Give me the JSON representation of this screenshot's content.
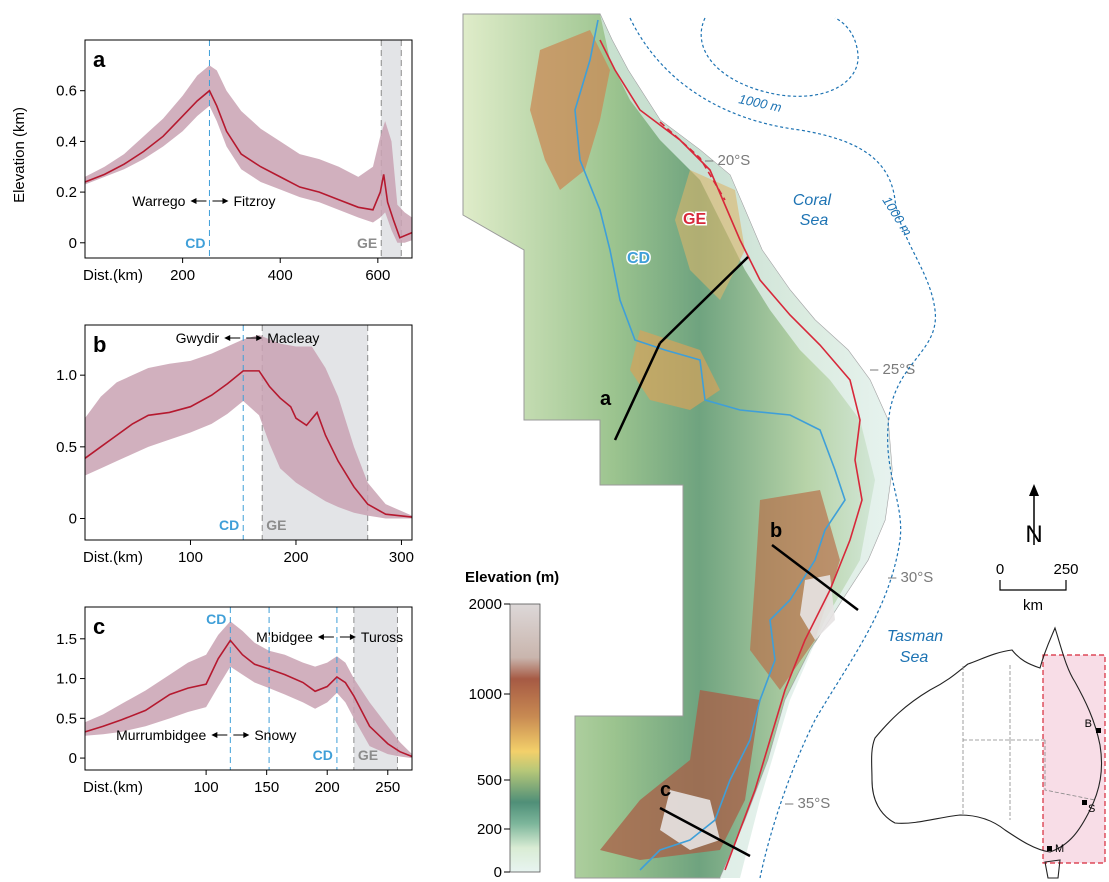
{
  "colors": {
    "profile_line": "#b5192f",
    "profile_band": "#c9a2b3",
    "cd_blue": "#3f9fd8",
    "ge_grey": "#8c8c8c",
    "ge_band": "#e3e4e7",
    "ge_red": "#d7283a",
    "sea_label": "#1d73b3",
    "contour": "#1d73b3",
    "lat_grey": "#7a7a7a",
    "inset_pink": "#f8dde7"
  },
  "chart_data": [
    {
      "id": "a",
      "type": "line",
      "panel_label": "a",
      "xlabel": "Dist.(km)",
      "ylabel": "Elevation (km)",
      "xlim": [
        0,
        670
      ],
      "ylim": [
        -0.06,
        0.8
      ],
      "xticks": [
        "200",
        "400",
        "600"
      ],
      "xtick_values": [
        200,
        400,
        600
      ],
      "yticks": [
        "0",
        "0.2",
        "0.4",
        "0.6"
      ],
      "ytick_values": [
        0,
        0.2,
        0.4,
        0.6
      ],
      "cd_lines": [
        255
      ],
      "ge_range": [
        607,
        648
      ],
      "cd_label": "CD",
      "ge_label": "GE",
      "drainage": {
        "left": "Warrego",
        "right": "Fitzroy",
        "at": 255
      },
      "series": [
        {
          "values": [
            [
              0,
              0.24
            ],
            [
              40,
              0.27
            ],
            [
              80,
              0.31
            ],
            [
              120,
              0.36
            ],
            [
              160,
              0.42
            ],
            [
              200,
              0.5
            ],
            [
              230,
              0.56
            ],
            [
              255,
              0.6
            ],
            [
              270,
              0.54
            ],
            [
              290,
              0.44
            ],
            [
              320,
              0.35
            ],
            [
              360,
              0.3
            ],
            [
              400,
              0.26
            ],
            [
              440,
              0.22
            ],
            [
              480,
              0.2
            ],
            [
              520,
              0.17
            ],
            [
              560,
              0.14
            ],
            [
              590,
              0.13
            ],
            [
              605,
              0.2
            ],
            [
              612,
              0.27
            ],
            [
              620,
              0.16
            ],
            [
              632,
              0.09
            ],
            [
              645,
              0.02
            ],
            [
              670,
              0.04
            ]
          ]
        },
        {
          "name": "",
          "band": true,
          "upper": [
            [
              0,
              0.26
            ],
            [
              40,
              0.3
            ],
            [
              80,
              0.35
            ],
            [
              120,
              0.42
            ],
            [
              160,
              0.49
            ],
            [
              200,
              0.58
            ],
            [
              230,
              0.66
            ],
            [
              255,
              0.7
            ],
            [
              270,
              0.68
            ],
            [
              290,
              0.6
            ],
            [
              320,
              0.52
            ],
            [
              360,
              0.45
            ],
            [
              400,
              0.4
            ],
            [
              440,
              0.35
            ],
            [
              480,
              0.33
            ],
            [
              520,
              0.3
            ],
            [
              560,
              0.26
            ],
            [
              590,
              0.3
            ],
            [
              605,
              0.42
            ],
            [
              615,
              0.48
            ],
            [
              628,
              0.4
            ],
            [
              640,
              0.15
            ],
            [
              655,
              0.12
            ],
            [
              670,
              0.1
            ]
          ],
          "lower": [
            [
              0,
              0.23
            ],
            [
              40,
              0.26
            ],
            [
              80,
              0.29
            ],
            [
              120,
              0.33
            ],
            [
              160,
              0.38
            ],
            [
              200,
              0.44
            ],
            [
              230,
              0.5
            ],
            [
              255,
              0.54
            ],
            [
              270,
              0.48
            ],
            [
              290,
              0.38
            ],
            [
              320,
              0.29
            ],
            [
              360,
              0.24
            ],
            [
              400,
              0.21
            ],
            [
              440,
              0.18
            ],
            [
              480,
              0.16
            ],
            [
              520,
              0.13
            ],
            [
              560,
              0.1
            ],
            [
              590,
              0.08
            ],
            [
              605,
              0.1
            ],
            [
              615,
              0.12
            ],
            [
              628,
              0.05
            ],
            [
              640,
              0.0
            ],
            [
              655,
              0.0
            ],
            [
              670,
              0.01
            ]
          ]
        }
      ]
    },
    {
      "id": "b",
      "type": "line",
      "panel_label": "b",
      "xlabel": "Dist.(km)",
      "ylabel": "",
      "xlim": [
        0,
        310
      ],
      "ylim": [
        -0.15,
        1.35
      ],
      "xticks": [
        "100",
        "200",
        "300"
      ],
      "xtick_values": [
        100,
        200,
        300
      ],
      "yticks": [
        "0",
        "0.5",
        "1.0"
      ],
      "ytick_values": [
        0,
        0.5,
        1.0
      ],
      "cd_lines": [
        150
      ],
      "ge_range": [
        168,
        268
      ],
      "cd_label": "CD",
      "ge_label": "GE",
      "drainage": {
        "left": "Gwydir",
        "right": "Macleay",
        "at": 150
      },
      "series": [
        {
          "values": [
            [
              0,
              0.42
            ],
            [
              15,
              0.5
            ],
            [
              30,
              0.58
            ],
            [
              45,
              0.66
            ],
            [
              60,
              0.72
            ],
            [
              80,
              0.74
            ],
            [
              100,
              0.78
            ],
            [
              120,
              0.86
            ],
            [
              135,
              0.94
            ],
            [
              150,
              1.03
            ],
            [
              165,
              1.03
            ],
            [
              175,
              0.92
            ],
            [
              185,
              0.84
            ],
            [
              195,
              0.78
            ],
            [
              200,
              0.7
            ],
            [
              210,
              0.65
            ],
            [
              220,
              0.74
            ],
            [
              228,
              0.58
            ],
            [
              240,
              0.4
            ],
            [
              255,
              0.22
            ],
            [
              268,
              0.1
            ],
            [
              285,
              0.03
            ],
            [
              310,
              0.01
            ]
          ]
        },
        {
          "band": true,
          "upper": [
            [
              0,
              0.7
            ],
            [
              15,
              0.85
            ],
            [
              30,
              0.95
            ],
            [
              45,
              1.0
            ],
            [
              60,
              1.05
            ],
            [
              80,
              1.08
            ],
            [
              100,
              1.1
            ],
            [
              120,
              1.15
            ],
            [
              135,
              1.2
            ],
            [
              150,
              1.25
            ],
            [
              165,
              1.28
            ],
            [
              175,
              1.25
            ],
            [
              185,
              1.22
            ],
            [
              200,
              1.2
            ],
            [
              215,
              1.2
            ],
            [
              228,
              1.05
            ],
            [
              240,
              0.85
            ],
            [
              255,
              0.5
            ],
            [
              268,
              0.25
            ],
            [
              285,
              0.1
            ],
            [
              310,
              0.02
            ]
          ],
          "lower": [
            [
              0,
              0.3
            ],
            [
              15,
              0.35
            ],
            [
              30,
              0.4
            ],
            [
              45,
              0.45
            ],
            [
              60,
              0.5
            ],
            [
              80,
              0.55
            ],
            [
              100,
              0.6
            ],
            [
              120,
              0.66
            ],
            [
              135,
              0.73
            ],
            [
              150,
              0.82
            ],
            [
              165,
              0.72
            ],
            [
              175,
              0.52
            ],
            [
              185,
              0.35
            ],
            [
              200,
              0.25
            ],
            [
              215,
              0.18
            ],
            [
              228,
              0.12
            ],
            [
              240,
              0.08
            ],
            [
              255,
              0.04
            ],
            [
              268,
              0.02
            ],
            [
              285,
              0.0
            ],
            [
              310,
              0.0
            ]
          ]
        }
      ]
    },
    {
      "id": "c",
      "type": "line",
      "panel_label": "c",
      "xlabel": "Dist.(km)",
      "ylabel": "",
      "xlim": [
        0,
        270
      ],
      "ylim": [
        -0.15,
        1.9
      ],
      "xticks": [
        "100",
        "150",
        "200",
        "250"
      ],
      "xtick_values": [
        100,
        150,
        200,
        250
      ],
      "yticks": [
        "0",
        "0.5",
        "1.0",
        "1.5"
      ],
      "ytick_values": [
        0,
        0.5,
        1.0,
        1.5
      ],
      "cd_lines": [
        120,
        152,
        208
      ],
      "ge_range": [
        222,
        258
      ],
      "cd_label": "CD",
      "ge_label": "GE",
      "drainage": {
        "left": "Murrumbidgee",
        "right": "Snowy",
        "at": 120
      },
      "drainage2": {
        "left": "M’bidgee",
        "right": "Tuross",
        "at": 208
      },
      "series": [
        {
          "values": [
            [
              0,
              0.33
            ],
            [
              15,
              0.4
            ],
            [
              30,
              0.48
            ],
            [
              50,
              0.6
            ],
            [
              70,
              0.8
            ],
            [
              85,
              0.88
            ],
            [
              100,
              0.93
            ],
            [
              110,
              1.25
            ],
            [
              120,
              1.48
            ],
            [
              130,
              1.3
            ],
            [
              140,
              1.18
            ],
            [
              152,
              1.12
            ],
            [
              165,
              1.05
            ],
            [
              180,
              0.95
            ],
            [
              190,
              0.84
            ],
            [
              200,
              0.9
            ],
            [
              208,
              1.02
            ],
            [
              215,
              0.95
            ],
            [
              222,
              0.78
            ],
            [
              235,
              0.4
            ],
            [
              250,
              0.18
            ],
            [
              260,
              0.08
            ],
            [
              270,
              0.02
            ]
          ]
        },
        {
          "band": true,
          "upper": [
            [
              0,
              0.45
            ],
            [
              15,
              0.55
            ],
            [
              30,
              0.68
            ],
            [
              50,
              0.85
            ],
            [
              70,
              1.05
            ],
            [
              85,
              1.2
            ],
            [
              100,
              1.3
            ],
            [
              110,
              1.55
            ],
            [
              120,
              1.72
            ],
            [
              130,
              1.6
            ],
            [
              140,
              1.45
            ],
            [
              152,
              1.35
            ],
            [
              165,
              1.3
            ],
            [
              180,
              1.2
            ],
            [
              190,
              1.15
            ],
            [
              200,
              1.2
            ],
            [
              208,
              1.28
            ],
            [
              215,
              1.2
            ],
            [
              222,
              1.0
            ],
            [
              235,
              0.7
            ],
            [
              250,
              0.4
            ],
            [
              260,
              0.2
            ],
            [
              270,
              0.05
            ]
          ],
          "lower": [
            [
              0,
              0.28
            ],
            [
              15,
              0.3
            ],
            [
              30,
              0.33
            ],
            [
              50,
              0.4
            ],
            [
              70,
              0.5
            ],
            [
              85,
              0.58
            ],
            [
              100,
              0.64
            ],
            [
              110,
              0.9
            ],
            [
              120,
              1.15
            ],
            [
              130,
              1.05
            ],
            [
              140,
              0.95
            ],
            [
              152,
              0.88
            ],
            [
              165,
              0.8
            ],
            [
              180,
              0.7
            ],
            [
              190,
              0.62
            ],
            [
              200,
              0.7
            ],
            [
              208,
              0.82
            ],
            [
              215,
              0.7
            ],
            [
              222,
              0.5
            ],
            [
              235,
              0.15
            ],
            [
              250,
              0.05
            ],
            [
              260,
              0.02
            ],
            [
              270,
              0.0
            ]
          ]
        }
      ]
    }
  ],
  "map": {
    "lat_labels": [
      "– 20°S",
      "– 25°S",
      "– 30°S",
      "– 35°S"
    ],
    "sea_labels": [
      "Coral",
      "Sea",
      "Tasman",
      "Sea"
    ],
    "contour_labels": [
      "1000 m",
      "1000 m"
    ],
    "ge_label": "GE",
    "cd_label": "CD",
    "transect_labels": [
      "a",
      "b",
      "c"
    ],
    "north_label": "N",
    "scale_ticks": [
      "0",
      "250"
    ],
    "scale_unit": "km",
    "inset_cities": [
      "B",
      "S",
      "M"
    ]
  },
  "legend": {
    "title": "Elevation (m)",
    "ticks": [
      "2000",
      "1000",
      "500",
      "200",
      "0"
    ],
    "tick_values": [
      2000,
      1000,
      500,
      200,
      0
    ]
  }
}
